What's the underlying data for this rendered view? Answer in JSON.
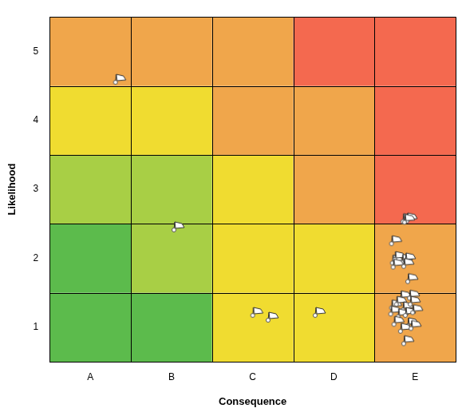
{
  "chart_data": {
    "type": "scatter",
    "xlabel": "Consequence",
    "ylabel": "Likelihood",
    "xlim": [
      0.5,
      5.5
    ],
    "xticks": [
      {
        "value": 1,
        "label": "A"
      },
      {
        "value": 2,
        "label": "B"
      },
      {
        "value": 3,
        "label": "C"
      },
      {
        "value": 4,
        "label": "D"
      },
      {
        "value": 5,
        "label": "E"
      }
    ],
    "ylim": [
      0.5,
      5.5
    ],
    "yticks": [
      1,
      2,
      3,
      4,
      5
    ],
    "grid": true,
    "series": [
      {
        "type": "heatmap",
        "colors": [
          [
            "#5cbb4c",
            "#5cbb4c",
            "#f0dc30",
            "#f0dc30",
            "#f0a64b"
          ],
          [
            "#5cbb4c",
            "#a8cf45",
            "#f0dc30",
            "#f0dc30",
            "#f0a64b"
          ],
          [
            "#a8cf45",
            "#a8cf45",
            "#f0dc30",
            "#f0a64b",
            "#f4694f"
          ],
          [
            "#f0dc30",
            "#f0dc30",
            "#f0a64b",
            "#f0a64b",
            "#f4694f"
          ],
          [
            "#f0a64b",
            "#f0a64b",
            "#f0a64b",
            "#f4694f",
            "#f4694f"
          ]
        ]
      },
      {
        "type": "scatter",
        "marker": "flag",
        "x": [
          1.31,
          2.03,
          3.0,
          3.19,
          3.77,
          4.85,
          4.9,
          4.87,
          4.71,
          4.72,
          4.75,
          4.84,
          4.88,
          4.73,
          4.86,
          4.91,
          4.82,
          4.93,
          4.71,
          4.77,
          4.85,
          4.94,
          4.7,
          4.79,
          4.88,
          4.97,
          4.74,
          4.91,
          4.82,
          4.95,
          4.86
        ],
        "y": [
          4.54,
          2.4,
          1.16,
          1.09,
          1.16,
          2.52,
          2.53,
          2.51,
          2.2,
          1.92,
          1.97,
          1.93,
          1.95,
          1.86,
          1.87,
          1.65,
          1.4,
          1.41,
          1.27,
          1.32,
          1.24,
          1.32,
          1.18,
          1.14,
          1.16,
          1.2,
          1.03,
          1.01,
          0.93,
          0.97,
          0.75
        ]
      }
    ]
  }
}
